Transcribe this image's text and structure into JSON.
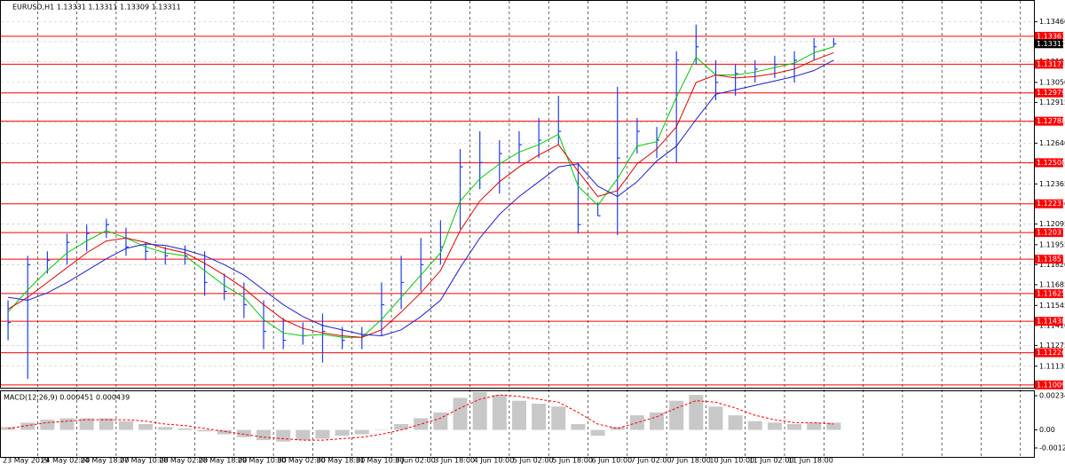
{
  "chart_data": [
    {
      "type": "ohlc",
      "title": "EURUSD,H1  1.13331 1.13311 1.13309 1.13311",
      "categories": [
        "23 May 2019",
        null,
        "24 May 02:00",
        null,
        "24 May 18:00",
        null,
        "27 May 10:00",
        null,
        "28 May 02:00",
        null,
        "28 May 18:00",
        null,
        "29 May 10:00",
        null,
        "30 May 02:00",
        null,
        "30 May 18:00",
        null,
        "31 May 10:00",
        null,
        "3 Jun 02:00",
        null,
        "3 Jun 18:00",
        null,
        "4 Jun 10:00",
        null,
        "5 Jun 02:00",
        null,
        "5 Jun 18:00",
        null,
        "6 Jun 10:00",
        null,
        "7 Jun 02:00",
        null,
        "7 Jun 18:00",
        null,
        "10 Jun 10:00",
        null,
        "11 Jun 02:00",
        null,
        "11 Jun 18:00",
        null,
        null
      ],
      "bars": {
        "color": "#1d3fe6",
        "high": [
          1.1158,
          1.1188,
          1.1191,
          1.1203,
          1.1209,
          1.1213,
          1.1207,
          1.1197,
          1.1194,
          1.1195,
          1.1191,
          1.1176,
          1.117,
          1.1158,
          1.1146,
          1.1143,
          1.1149,
          1.114,
          1.114,
          1.117,
          1.1188,
          1.12,
          1.1212,
          1.126,
          1.1272,
          1.1266,
          1.1272,
          1.1281,
          1.1296,
          1.1251,
          1.1224,
          1.1302,
          1.1281,
          1.1275,
          1.1326,
          1.1344,
          1.132,
          1.1317,
          1.132,
          1.1323,
          1.1326,
          1.1335,
          1.1335
        ],
        "low": [
          1.1131,
          1.1105,
          1.1176,
          1.1182,
          1.1191,
          1.12,
          1.1188,
          1.1185,
          1.1182,
          1.1182,
          1.1161,
          1.1158,
          1.1146,
          1.1125,
          1.1125,
          1.1128,
          1.1116,
          1.1125,
          1.1125,
          1.1134,
          1.1152,
          1.1164,
          1.1182,
          1.1206,
          1.1233,
          1.123,
          1.1251,
          1.1254,
          1.1263,
          1.1203,
          1.1215,
          1.1202,
          1.1257,
          1.1254,
          1.1251,
          1.1317,
          1.1293,
          1.1296,
          1.1305,
          1.1308,
          1.1305,
          1.132,
          1.1329
        ],
        "close": [
          1.1143,
          1.1182,
          1.1185,
          1.1197,
          1.1203,
          1.1209,
          1.1194,
          1.1191,
          1.1188,
          1.1188,
          1.117,
          1.1164,
          1.1155,
          1.1137,
          1.1131,
          1.1134,
          1.1137,
          1.1131,
          1.1134,
          1.1155,
          1.117,
          1.1182,
          1.1194,
          1.1248,
          1.1251,
          1.1257,
          1.1263,
          1.1266,
          1.1272,
          1.1209,
          1.1215,
          1.1254,
          1.1272,
          1.1266,
          1.132,
          1.1329,
          1.1305,
          1.1311,
          1.1314,
          1.1317,
          1.132,
          1.1329,
          1.1331
        ]
      },
      "series": [
        {
          "color": "#00c800",
          "values": [
            1.115,
            1.1165,
            1.1178,
            1.119,
            1.1198,
            1.1205,
            1.12,
            1.1194,
            1.119,
            1.1188,
            1.1178,
            1.1168,
            1.116,
            1.1145,
            1.1136,
            1.1134,
            1.1135,
            1.1133,
            1.1133,
            1.1145,
            1.116,
            1.1175,
            1.119,
            1.1225,
            1.124,
            1.125,
            1.1258,
            1.1263,
            1.127,
            1.1235,
            1.1222,
            1.124,
            1.1262,
            1.1265,
            1.1295,
            1.1322,
            1.131,
            1.131,
            1.1312,
            1.1315,
            1.1318,
            1.1325,
            1.1329
          ]
        },
        {
          "color": "#e00000",
          "values": [
            1.1152,
            1.116,
            1.117,
            1.118,
            1.119,
            1.1198,
            1.12,
            1.1197,
            1.1193,
            1.119,
            1.1183,
            1.1175,
            1.1166,
            1.1155,
            1.1145,
            1.1139,
            1.1136,
            1.1134,
            1.1133,
            1.1138,
            1.115,
            1.1163,
            1.1178,
            1.1205,
            1.1225,
            1.1238,
            1.1248,
            1.1256,
            1.1263,
            1.1245,
            1.1228,
            1.1232,
            1.125,
            1.126,
            1.1275,
            1.1305,
            1.131,
            1.1308,
            1.1309,
            1.1311,
            1.1314,
            1.132,
            1.1325
          ]
        },
        {
          "color": "#1e1ec8",
          "values": [
            1.116,
            1.1158,
            1.1163,
            1.117,
            1.1178,
            1.1186,
            1.1193,
            1.1196,
            1.1195,
            1.1192,
            1.1188,
            1.1182,
            1.1175,
            1.1165,
            1.1155,
            1.1147,
            1.1141,
            1.1138,
            1.1135,
            1.1134,
            1.1138,
            1.1147,
            1.1158,
            1.118,
            1.12,
            1.1216,
            1.1228,
            1.1238,
            1.1248,
            1.125,
            1.1235,
            1.1228,
            1.1238,
            1.1252,
            1.1262,
            1.128,
            1.1297,
            1.13,
            1.1303,
            1.1306,
            1.1309,
            1.1313,
            1.132
          ]
        }
      ],
      "levels": {
        "color": "#ff0000",
        "values": [
          1.13361,
          1.13173,
          1.12979,
          1.12788,
          1.12508,
          1.12231,
          1.12037,
          1.11857,
          1.11625,
          1.11438,
          1.11226,
          1.11009
        ]
      },
      "current_price": 1.13311,
      "ylim": [
        1.1099,
        1.136
      ],
      "yticks": [
        {
          "value": 1.1346,
          "label": "1.13460"
        },
        1.13325,
        1.1319,
        {
          "value": 1.1305,
          "label": "1.13050"
        },
        1.12915,
        {
          "value": 1.1278,
          "label": "1.12780"
        },
        {
          "value": 1.1264,
          "label": "1.12640"
        },
        1.12505,
        1.12365,
        {
          "value": 1.1223,
          "label": "1.12230"
        },
        1.12095,
        1.11955,
        {
          "value": 1.1182,
          "label": "1.11820"
        },
        1.11685,
        1.11545,
        {
          "value": 1.1141,
          "label": "1.11410"
        },
        1.11275,
        1.11135
      ],
      "grid": true
    },
    {
      "type": "macd",
      "title": "MACD(12,26,9) 0.000451 0.000439",
      "histogram": {
        "color": "#c8c8c8",
        "values": [
          0.0002,
          0.0005,
          0.0007,
          0.0008,
          0.0008,
          0.0008,
          0.0006,
          0.0004,
          0.0002,
          0.0001,
          -0.0001,
          -0.0003,
          -0.0005,
          -0.0007,
          -0.0008,
          -0.0007,
          -0.0006,
          -0.0004,
          -0.0003,
          0.0,
          0.0004,
          0.0008,
          0.0012,
          0.0022,
          0.0026,
          0.0024,
          0.002,
          0.0018,
          0.0016,
          0.0004,
          -0.0004,
          0.0002,
          0.001,
          0.0012,
          0.002,
          0.0024,
          0.0016,
          0.001,
          0.0006,
          0.0005,
          0.0004,
          0.0005,
          0.0005
        ]
      },
      "signal": {
        "color": "#ff0000",
        "values": [
          0.0001,
          0.0003,
          0.0005,
          0.0006,
          0.0007,
          0.0007,
          0.0007,
          0.0006,
          0.0004,
          0.0003,
          0.0001,
          -0.0001,
          -0.0003,
          -0.0005,
          -0.0006,
          -0.0007,
          -0.0007,
          -0.0006,
          -0.0005,
          -0.0003,
          0.0,
          0.0004,
          0.0008,
          0.0015,
          0.0021,
          0.0024,
          0.0023,
          0.0021,
          0.0019,
          0.0012,
          0.0004,
          0.0001,
          0.0005,
          0.0009,
          0.0015,
          0.002,
          0.0019,
          0.0015,
          0.001,
          0.0007,
          0.0005,
          0.0005,
          0.0004
        ]
      },
      "ylim": [
        -0.00185,
        0.00265
      ],
      "yticks": [
        0.002344,
        {
          "value": 0,
          "label": "0.00"
        },
        -0.00124
      ]
    }
  ]
}
